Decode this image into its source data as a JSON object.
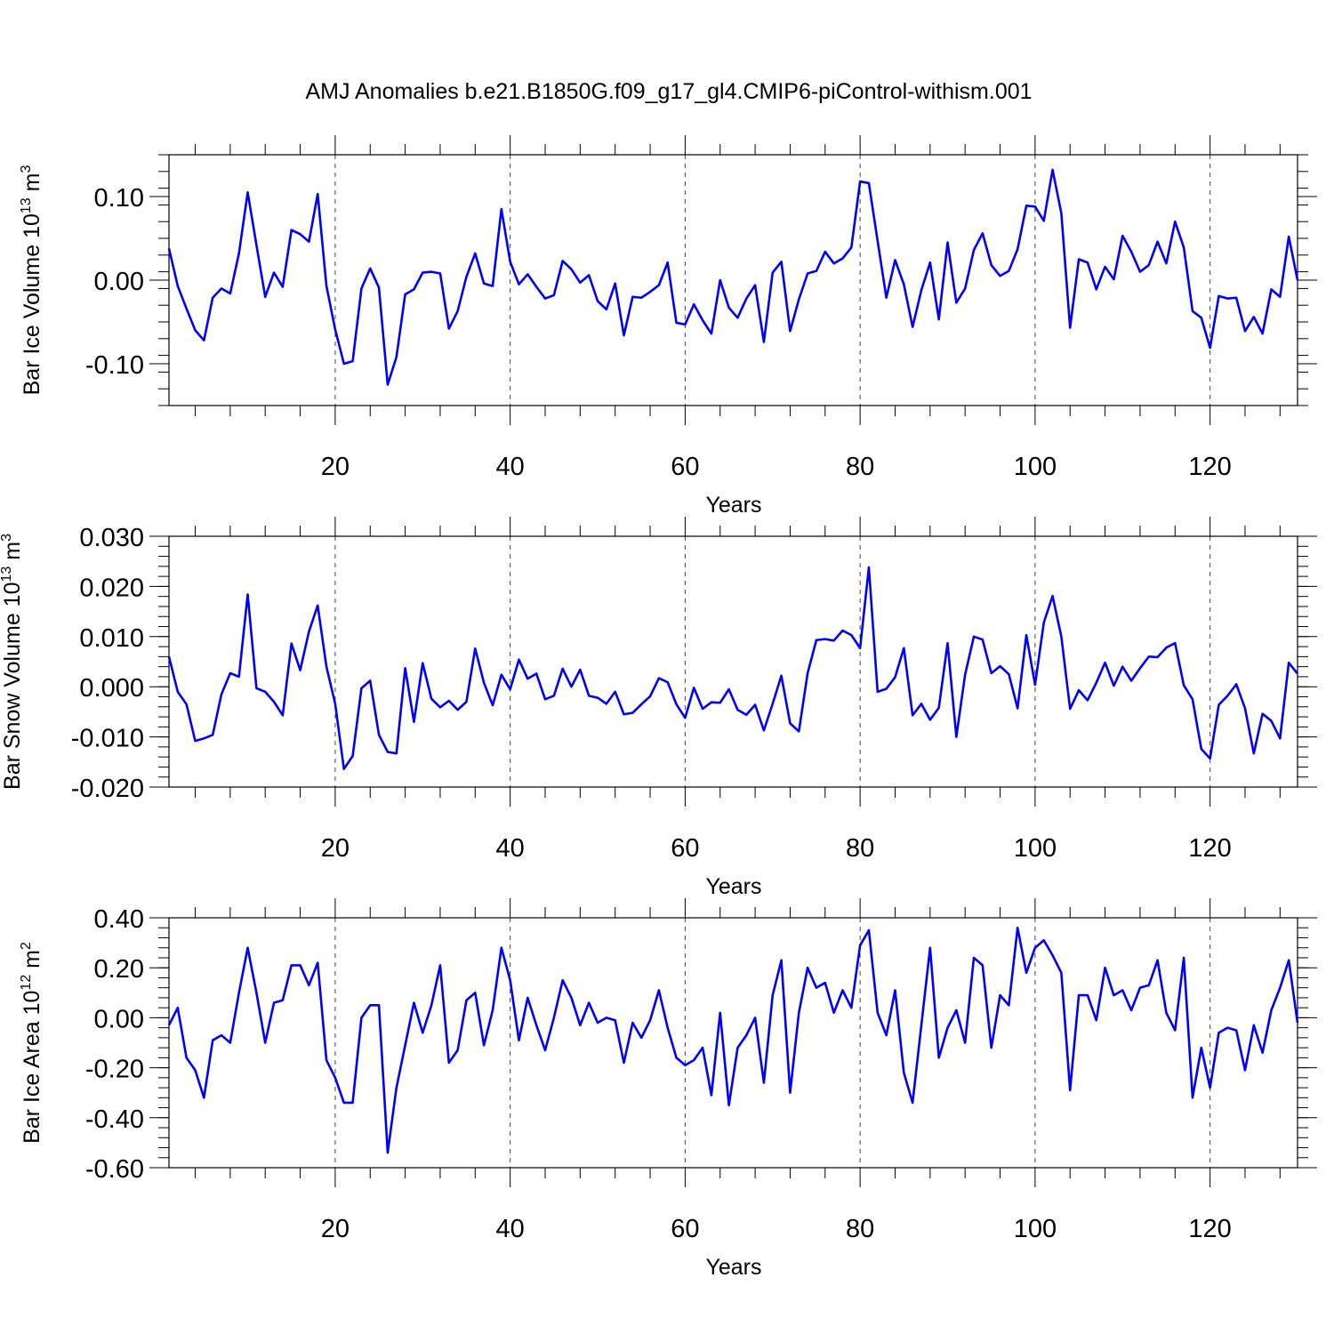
{
  "figure": {
    "title": "AMJ Anomalies b.e21.B1850G.f09_g17_gl4.CMIP6-piControl-withism.001"
  },
  "chart_data": [
    {
      "type": "line",
      "xlabel": "Years",
      "ylabel": "Bar Ice Volume 10",
      "ylabel_exp": "13",
      "ylabel_unit": " m",
      "ylabel_unit_exp": "3",
      "xlim": [
        1,
        130
      ],
      "ylim": [
        -0.15,
        0.15
      ],
      "x_ticks": [
        20,
        40,
        60,
        80,
        100,
        120
      ],
      "x_tick_labels": [
        "20",
        "40",
        "60",
        "80",
        "100",
        "120"
      ],
      "y_ticks": [
        -0.1,
        0.0,
        0.1
      ],
      "y_tick_labels": [
        "-0.10",
        "0.00",
        "0.10"
      ],
      "y_minor_step": 0.02,
      "grid": "dashed vertical at major x ticks",
      "series": [
        {
          "color": "#0000ff",
          "x_start": 1,
          "values": [
            0.038,
            -0.007,
            -0.034,
            -0.06,
            -0.072,
            -0.021,
            -0.01,
            -0.016,
            0.032,
            0.105,
            0.042,
            -0.02,
            0.009,
            -0.008,
            0.06,
            0.055,
            0.046,
            0.103,
            -0.007,
            -0.059,
            -0.1,
            -0.097,
            -0.01,
            0.014,
            -0.009,
            -0.125,
            -0.092,
            -0.017,
            -0.011,
            0.009,
            0.01,
            0.008,
            -0.058,
            -0.037,
            0.004,
            0.032,
            -0.004,
            -0.007,
            0.085,
            0.022,
            -0.005,
            0.007,
            -0.008,
            -0.022,
            -0.018,
            0.023,
            0.013,
            -0.003,
            0.006,
            -0.025,
            -0.035,
            -0.004,
            -0.066,
            -0.02,
            -0.021,
            -0.014,
            -0.006,
            0.021,
            -0.051,
            -0.053,
            -0.029,
            -0.048,
            -0.064,
            0.0,
            -0.033,
            -0.045,
            -0.022,
            -0.006,
            -0.074,
            0.009,
            0.022,
            -0.061,
            -0.023,
            0.008,
            0.011,
            0.034,
            0.02,
            0.026,
            0.039,
            0.118,
            0.116,
            0.047,
            -0.021,
            0.024,
            -0.005,
            -0.056,
            -0.012,
            0.021,
            -0.047,
            0.045,
            -0.027,
            -0.01,
            0.036,
            0.056,
            0.018,
            0.005,
            0.011,
            0.037,
            0.089,
            0.088,
            0.071,
            0.132,
            0.08,
            -0.057,
            0.025,
            0.021,
            -0.011,
            0.016,
            0.001,
            0.053,
            0.034,
            0.01,
            0.018,
            0.046,
            0.02,
            0.07,
            0.039,
            -0.037,
            -0.045,
            -0.081,
            -0.019,
            -0.022,
            -0.021,
            -0.061,
            -0.044,
            -0.064,
            -0.011,
            -0.02,
            0.052,
            0.0
          ]
        }
      ]
    },
    {
      "type": "line",
      "xlabel": "Years",
      "ylabel": "Bar Snow Volume 10",
      "ylabel_exp": "13",
      "ylabel_unit": " m",
      "ylabel_unit_exp": "3",
      "xlim": [
        1,
        130
      ],
      "ylim": [
        -0.02,
        0.03
      ],
      "x_ticks": [
        20,
        40,
        60,
        80,
        100,
        120
      ],
      "x_tick_labels": [
        "20",
        "40",
        "60",
        "80",
        "100",
        "120"
      ],
      "y_ticks": [
        -0.02,
        -0.01,
        0.0,
        0.01,
        0.02,
        0.03
      ],
      "y_tick_labels": [
        "-0.020",
        "-0.010",
        "0.000",
        "0.010",
        "0.020",
        "0.030"
      ],
      "y_minor_step": 0.002,
      "grid": "dashed vertical at major x ticks",
      "series": [
        {
          "color": "#0000ff",
          "x_start": 1,
          "values": [
            0.006,
            -0.001,
            -0.0035,
            -0.0108,
            -0.0103,
            -0.0096,
            -0.0015,
            0.0027,
            0.002,
            0.0184,
            -0.0003,
            -0.001,
            -0.003,
            -0.0057,
            0.0086,
            0.0033,
            0.011,
            0.0162,
            0.004,
            -0.0034,
            -0.0164,
            -0.0138,
            -0.0003,
            0.0012,
            -0.0096,
            -0.013,
            -0.0133,
            0.0037,
            -0.007,
            0.0047,
            -0.0024,
            -0.0041,
            -0.0028,
            -0.0046,
            -0.003,
            0.0076,
            0.0008,
            -0.0037,
            0.0024,
            -0.0005,
            0.0054,
            0.0016,
            0.0026,
            -0.0025,
            -0.0018,
            0.0036,
            0.0,
            0.0034,
            -0.0018,
            -0.0022,
            -0.0034,
            -0.001,
            -0.0055,
            -0.0052,
            -0.0035,
            -0.0019,
            0.0017,
            0.0009,
            -0.0035,
            -0.0062,
            -0.0002,
            -0.0044,
            -0.0031,
            -0.0032,
            -0.0005,
            -0.0046,
            -0.0056,
            -0.0036,
            -0.0087,
            -0.0034,
            0.0022,
            -0.0073,
            -0.0089,
            0.0027,
            0.0093,
            0.0095,
            0.0092,
            0.0112,
            0.0103,
            0.0077,
            0.0238,
            -0.001,
            -0.0004,
            0.0019,
            0.0077,
            -0.0057,
            -0.0034,
            -0.0066,
            -0.0042,
            0.0087,
            -0.01,
            0.0024,
            0.01,
            0.0094,
            0.0027,
            0.0041,
            0.0025,
            -0.0043,
            0.0103,
            0.0004,
            0.0128,
            0.0181,
            0.01,
            -0.0044,
            -0.0007,
            -0.0027,
            0.0008,
            0.0048,
            0.0002,
            0.004,
            0.0012,
            0.0037,
            0.006,
            0.0059,
            0.0078,
            0.0087,
            0.0003,
            -0.0025,
            -0.0124,
            -0.0143,
            -0.0036,
            -0.0018,
            0.0005,
            -0.0043,
            -0.0133,
            -0.0054,
            -0.0068,
            -0.0103,
            0.0048,
            0.0026
          ]
        }
      ]
    },
    {
      "type": "line",
      "xlabel": "Years",
      "ylabel": "Bar Ice Area 10",
      "ylabel_exp": "12",
      "ylabel_unit": " m",
      "ylabel_unit_exp": "2",
      "xlim": [
        1,
        130
      ],
      "ylim": [
        -0.6,
        0.4
      ],
      "x_ticks": [
        20,
        40,
        60,
        80,
        100,
        120
      ],
      "x_tick_labels": [
        "20",
        "40",
        "60",
        "80",
        "100",
        "120"
      ],
      "y_ticks": [
        -0.6,
        -0.4,
        -0.2,
        0.0,
        0.2,
        0.4
      ],
      "y_tick_labels": [
        "-0.60",
        "-0.40",
        "-0.20",
        "0.00",
        "0.20",
        "0.40"
      ],
      "y_minor_step": 0.04,
      "grid": "dashed vertical at major x ticks",
      "series": [
        {
          "color": "#0000ff",
          "x_start": 1,
          "values": [
            -0.03,
            0.04,
            -0.16,
            -0.21,
            -0.32,
            -0.09,
            -0.07,
            -0.1,
            0.1,
            0.28,
            0.1,
            -0.1,
            0.06,
            0.07,
            0.21,
            0.21,
            0.13,
            0.22,
            -0.17,
            -0.24,
            -0.34,
            -0.34,
            0.0,
            0.05,
            0.05,
            -0.54,
            -0.28,
            -0.11,
            0.06,
            -0.06,
            0.05,
            0.21,
            -0.18,
            -0.13,
            0.07,
            0.1,
            -0.11,
            0.03,
            0.28,
            0.15,
            -0.09,
            0.08,
            -0.03,
            -0.13,
            0.0,
            0.15,
            0.08,
            -0.03,
            0.06,
            -0.02,
            0.0,
            -0.01,
            -0.18,
            -0.02,
            -0.08,
            -0.01,
            0.11,
            -0.04,
            -0.16,
            -0.19,
            -0.17,
            -0.12,
            -0.31,
            0.02,
            -0.35,
            -0.12,
            -0.07,
            0.0,
            -0.26,
            0.09,
            0.23,
            -0.3,
            0.02,
            0.2,
            0.12,
            0.14,
            0.02,
            0.11,
            0.04,
            0.29,
            0.35,
            0.02,
            -0.07,
            0.11,
            -0.22,
            -0.34,
            -0.03,
            0.28,
            -0.16,
            -0.04,
            0.03,
            -0.1,
            0.24,
            0.21,
            -0.12,
            0.09,
            0.05,
            0.36,
            0.18,
            0.28,
            0.31,
            0.25,
            0.18,
            -0.29,
            0.09,
            0.09,
            -0.01,
            0.2,
            0.09,
            0.11,
            0.03,
            0.12,
            0.13,
            0.23,
            0.02,
            -0.05,
            0.24,
            -0.32,
            -0.12,
            -0.28,
            -0.06,
            -0.04,
            -0.05,
            -0.21,
            -0.03,
            -0.14,
            0.03,
            0.12,
            0.23,
            -0.02
          ]
        }
      ]
    }
  ]
}
